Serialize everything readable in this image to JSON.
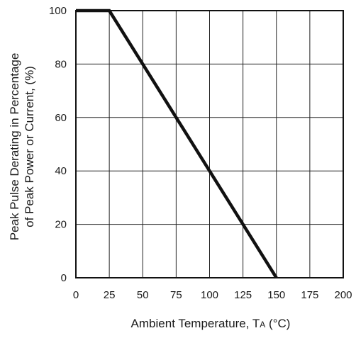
{
  "chart_data": {
    "type": "line",
    "title": "",
    "xlabel_main": "Ambient Temperature, T",
    "xlabel_sub": "A",
    "xlabel_tail": " (°C)",
    "ylabel_line1": "Peak Pulse Derating in Percentage",
    "ylabel_line2": "of Peak Power or Current, (%)",
    "xlim": [
      0,
      200
    ],
    "ylim": [
      0,
      100
    ],
    "x_ticks": [
      0,
      25,
      50,
      75,
      100,
      125,
      150,
      175,
      200
    ],
    "y_ticks": [
      0,
      20,
      40,
      60,
      80,
      100
    ],
    "x_tick_labels": [
      "0",
      "25",
      "50",
      "75",
      "100",
      "125",
      "150",
      "175",
      "200"
    ],
    "y_tick_labels": [
      "0",
      "20",
      "40",
      "60",
      "80",
      "100"
    ],
    "grid": true,
    "series": [
      {
        "x": [
          0,
          25,
          150
        ],
        "y": [
          100,
          100,
          0
        ],
        "color": "#111111"
      }
    ]
  }
}
